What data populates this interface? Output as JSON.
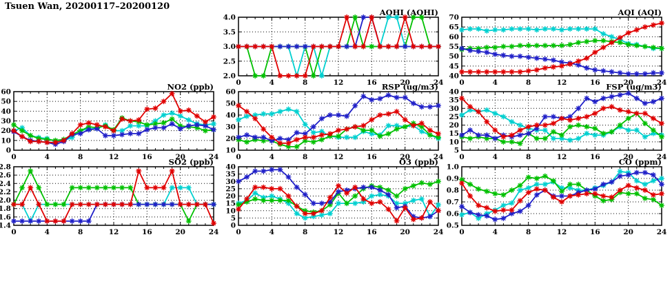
{
  "title": "Tsuen Wan, 20200117–20200120",
  "colors": {
    "red": "#e00000",
    "green": "#00c000",
    "blue": "#2020c8",
    "cyan": "#00d0d0"
  },
  "axis_x": {
    "min": 0,
    "max": 24,
    "ticks": [
      0,
      4,
      8,
      12,
      16,
      20,
      24
    ]
  },
  "marker_style": "asterisk",
  "chart_data": [
    {
      "id": "aqhi",
      "type": "line",
      "title": "AQHI (AQHI)",
      "ylim": [
        2,
        4
      ],
      "yticks": [
        2,
        2.5,
        3,
        3.5,
        4
      ],
      "ydec": 1,
      "series": [
        {
          "color": "cyan",
          "values": [
            3,
            3,
            3,
            3,
            3,
            3,
            3,
            2,
            3,
            3,
            2,
            3,
            3,
            3,
            3,
            3,
            3,
            3,
            4,
            4,
            3,
            3,
            3,
            3,
            3
          ]
        },
        {
          "color": "green",
          "values": [
            3,
            3,
            2,
            2,
            3,
            3,
            3,
            3,
            3,
            2,
            3,
            3,
            3,
            3,
            4,
            3,
            3,
            3,
            3,
            3,
            3,
            4,
            4,
            3,
            3
          ]
        },
        {
          "color": "blue",
          "values": [
            3,
            3,
            3,
            3,
            3,
            3,
            3,
            3,
            3,
            3,
            3,
            3,
            3,
            3,
            3,
            4,
            4,
            3,
            3,
            3,
            3,
            3,
            3,
            3,
            3
          ]
        },
        {
          "color": "red",
          "values": [
            3,
            3,
            3,
            3,
            3,
            2,
            2,
            2,
            2,
            3,
            3,
            3,
            3,
            4,
            3,
            3,
            4,
            3,
            3,
            3,
            4,
            3,
            3,
            3,
            3
          ]
        }
      ]
    },
    {
      "id": "aqi",
      "type": "line",
      "title": "AQI (AQI)",
      "ylim": [
        40,
        70
      ],
      "yticks": [
        40,
        45,
        50,
        55,
        60,
        65,
        70
      ],
      "ydec": 0,
      "series": [
        {
          "color": "cyan",
          "values": [
            63.5,
            64,
            64,
            63,
            63.5,
            63.5,
            64,
            64,
            64,
            63.5,
            64,
            64,
            63.5,
            64,
            64,
            64,
            64,
            61.5,
            60,
            58.5,
            56.5,
            56,
            55,
            54,
            54
          ]
        },
        {
          "color": "green",
          "values": [
            53.5,
            54,
            54,
            54.5,
            54.5,
            55,
            55,
            55.5,
            55.5,
            55.5,
            55.5,
            55.5,
            55.5,
            56,
            57,
            57.5,
            58,
            58,
            57.5,
            57,
            56,
            55.5,
            55,
            54.5,
            54
          ]
        },
        {
          "color": "blue",
          "values": [
            54,
            53,
            52.5,
            52,
            51,
            50.5,
            50,
            50,
            49.5,
            49,
            48.5,
            48,
            47,
            46.5,
            45.5,
            44,
            43,
            42.5,
            42,
            41.5,
            41,
            41,
            41,
            41.5,
            41.5
          ]
        },
        {
          "color": "red",
          "values": [
            42,
            42,
            42,
            42,
            42,
            42,
            42,
            42,
            42.5,
            43,
            44,
            44.5,
            45,
            46,
            47.5,
            49,
            52,
            54.5,
            57,
            59.5,
            62,
            63.5,
            65,
            66,
            67
          ]
        }
      ]
    },
    {
      "id": "no2",
      "type": "line",
      "title": "NO2 (ppb)",
      "ylim": [
        0,
        60
      ],
      "yticks": [
        0,
        10,
        20,
        30,
        40,
        50,
        60
      ],
      "ydec": 0,
      "series": [
        {
          "color": "cyan",
          "values": [
            20,
            23,
            15,
            13,
            12,
            9,
            10,
            13,
            20,
            22,
            22,
            26,
            20,
            20,
            25,
            25,
            25,
            30,
            36,
            38,
            35,
            31,
            27,
            26,
            27
          ]
        },
        {
          "color": "green",
          "values": [
            26,
            20,
            15,
            12,
            11,
            10,
            11,
            16,
            20,
            24,
            23,
            25,
            21,
            33,
            30,
            29,
            26,
            27,
            28,
            32,
            25,
            24,
            23,
            20,
            21
          ]
        },
        {
          "color": "blue",
          "values": [
            19,
            14,
            10,
            9,
            8,
            6,
            9,
            16,
            17,
            21,
            22,
            15,
            15,
            16,
            17,
            17,
            21,
            23,
            23,
            27,
            22,
            25,
            26,
            25,
            21
          ]
        },
        {
          "color": "red",
          "values": [
            20,
            14,
            9,
            9,
            8,
            8,
            10,
            17,
            26,
            28,
            26,
            24,
            20,
            32,
            30,
            31,
            42,
            43,
            50,
            58,
            40,
            41,
            35,
            29,
            34
          ]
        }
      ]
    },
    {
      "id": "rsp",
      "type": "line",
      "title": "RSP (ug/m3)",
      "ylim": [
        10,
        60
      ],
      "yticks": [
        10,
        20,
        30,
        40,
        50,
        60
      ],
      "ydec": 0,
      "series": [
        {
          "color": "cyan",
          "values": [
            36,
            39,
            40,
            41,
            41,
            43,
            45,
            43,
            32,
            25,
            26,
            22,
            21,
            21,
            21,
            26,
            24,
            23,
            31,
            31,
            30,
            31,
            26,
            23,
            20
          ]
        },
        {
          "color": "green",
          "values": [
            19,
            17,
            19,
            18,
            18,
            15,
            13,
            13,
            18,
            17,
            19,
            22,
            22,
            28,
            30,
            27,
            27,
            22,
            24,
            28,
            30,
            33,
            30,
            23,
            21
          ]
        },
        {
          "color": "blue",
          "values": [
            21,
            23,
            21,
            21,
            18,
            20,
            19,
            25,
            24,
            30,
            37,
            40,
            40,
            39,
            48,
            56,
            53,
            54,
            57,
            55,
            55,
            50,
            47,
            47,
            48
          ]
        },
        {
          "color": "red",
          "values": [
            48,
            43,
            37,
            28,
            21,
            16,
            16,
            19,
            21,
            21,
            23,
            24,
            27,
            28,
            30,
            31,
            36,
            40,
            41,
            43,
            36,
            31,
            33,
            27,
            24
          ]
        }
      ]
    },
    {
      "id": "fsp",
      "type": "line",
      "title": "FSP (ug/m3)",
      "ylim": [
        5,
        40
      ],
      "yticks": [
        5,
        10,
        15,
        20,
        25,
        30,
        35,
        40
      ],
      "ydec": 0,
      "series": [
        {
          "color": "cyan",
          "values": [
            26,
            29,
            28,
            29,
            27,
            25,
            22,
            20,
            18,
            17,
            17,
            12,
            12,
            11,
            12,
            15,
            14,
            14,
            16,
            19,
            17,
            17,
            13,
            15,
            14
          ]
        },
        {
          "color": "green",
          "values": [
            13,
            12,
            13,
            12,
            12,
            10,
            10,
            9,
            15,
            12,
            12,
            16,
            14,
            19,
            20,
            19,
            18,
            15,
            16,
            20,
            24,
            27,
            21,
            17,
            13
          ]
        },
        {
          "color": "blue",
          "values": [
            14,
            17,
            14,
            14,
            12,
            14,
            13,
            14,
            15,
            18,
            25,
            25,
            24,
            25,
            30,
            36,
            34,
            36,
            37,
            38,
            39,
            36,
            33,
            34,
            36
          ]
        },
        {
          "color": "red",
          "values": [
            36,
            31,
            28,
            22,
            17,
            13,
            14,
            17,
            19,
            20,
            20,
            21,
            24,
            23,
            24,
            25,
            27,
            30,
            31,
            29,
            28,
            27,
            27,
            24,
            21
          ]
        }
      ]
    },
    {
      "id": "so2",
      "type": "line",
      "title": "SO2 (ppb)",
      "ylim": [
        1.4,
        2.8
      ],
      "yticks": [
        1.4,
        1.6,
        1.8,
        2.0,
        2.2,
        2.4,
        2.6,
        2.8
      ],
      "ydec": 1,
      "series": [
        {
          "color": "cyan",
          "values": [
            1.9,
            1.9,
            1.5,
            1.9,
            1.9,
            1.9,
            1.9,
            1.9,
            1.9,
            1.9,
            1.9,
            1.9,
            1.9,
            1.9,
            1.9,
            1.9,
            1.9,
            1.9,
            1.9,
            2.3,
            2.3,
            2.3,
            1.9,
            1.9,
            1.9
          ]
        },
        {
          "color": "green",
          "values": [
            1.9,
            2.3,
            2.7,
            2.3,
            1.9,
            1.9,
            1.9,
            2.3,
            2.3,
            2.3,
            2.3,
            2.3,
            2.3,
            2.3,
            2.3,
            1.9,
            1.9,
            1.9,
            1.9,
            1.9,
            1.9,
            1.5,
            1.9,
            1.9,
            1.9
          ]
        },
        {
          "color": "blue",
          "values": [
            1.5,
            1.5,
            1.5,
            1.5,
            1.5,
            1.5,
            1.5,
            1.5,
            1.5,
            1.5,
            1.9,
            1.9,
            1.9,
            1.9,
            1.9,
            1.9,
            1.9,
            1.9,
            1.9,
            1.9,
            1.9,
            1.9,
            1.9,
            1.9,
            1.9
          ]
        },
        {
          "color": "red",
          "values": [
            1.9,
            1.9,
            2.3,
            1.9,
            1.5,
            1.5,
            1.5,
            1.9,
            1.9,
            1.9,
            1.9,
            1.9,
            1.9,
            1.9,
            1.9,
            2.7,
            2.3,
            2.3,
            2.3,
            2.7,
            1.9,
            1.9,
            1.9,
            1.9,
            1.45
          ]
        }
      ]
    },
    {
      "id": "o3",
      "type": "line",
      "title": "O3 (ppb)",
      "ylim": [
        0,
        40
      ],
      "yticks": [
        0,
        5,
        10,
        15,
        20,
        25,
        30,
        35,
        40
      ],
      "ydec": 0,
      "series": [
        {
          "color": "cyan",
          "values": [
            15,
            17,
            22,
            19,
            20,
            18,
            15,
            8,
            5,
            6,
            7,
            8,
            15,
            15,
            15,
            16,
            20,
            21,
            20,
            15,
            15,
            17,
            18,
            6,
            14
          ]
        },
        {
          "color": "green",
          "values": [
            14,
            16,
            18,
            17,
            17,
            17,
            17,
            13,
            10,
            9,
            10,
            14,
            22,
            15,
            20,
            25,
            27,
            26,
            24,
            20,
            25,
            27,
            29,
            28,
            30
          ]
        },
        {
          "color": "blue",
          "values": [
            30,
            33,
            37,
            37,
            38,
            38,
            33,
            26,
            21,
            15,
            15,
            16,
            23,
            24,
            25,
            26,
            26,
            24,
            21,
            12,
            13,
            6,
            5,
            6,
            10
          ]
        },
        {
          "color": "red",
          "values": [
            11,
            18,
            26,
            26,
            25,
            25,
            20,
            13,
            8,
            8,
            10,
            19,
            27,
            22,
            26,
            18,
            15,
            16,
            11,
            3,
            12,
            4,
            5,
            16,
            10
          ]
        }
      ]
    },
    {
      "id": "co",
      "type": "line",
      "title": "CO (ppm)",
      "ylim": [
        0.5,
        1.0
      ],
      "yticks": [
        0.5,
        0.6,
        0.7,
        0.8,
        0.9,
        1.0
      ],
      "ydec": 1,
      "series": [
        {
          "color": "cyan",
          "values": [
            0.59,
            0.61,
            0.56,
            0.6,
            0.63,
            0.67,
            0.69,
            0.8,
            0.82,
            0.85,
            0.85,
            0.87,
            0.82,
            0.82,
            0.8,
            0.8,
            0.82,
            0.84,
            0.87,
            0.96,
            0.95,
            0.88,
            0.85,
            0.88,
            0.9
          ]
        },
        {
          "color": "green",
          "values": [
            0.89,
            0.85,
            0.81,
            0.79,
            0.77,
            0.76,
            0.8,
            0.84,
            0.91,
            0.9,
            0.92,
            0.88,
            0.79,
            0.85,
            0.85,
            0.8,
            0.75,
            0.71,
            0.72,
            0.78,
            0.77,
            0.77,
            0.73,
            0.72,
            0.67
          ]
        },
        {
          "color": "blue",
          "values": [
            0.66,
            0.61,
            0.59,
            0.58,
            0.55,
            0.56,
            0.6,
            0.62,
            0.67,
            0.76,
            0.8,
            0.75,
            0.75,
            0.75,
            0.78,
            0.8,
            0.81,
            0.85,
            0.87,
            0.92,
            0.93,
            0.95,
            0.95,
            0.93,
            0.85
          ]
        },
        {
          "color": "red",
          "values": [
            0.86,
            0.75,
            0.67,
            0.65,
            0.62,
            0.63,
            0.63,
            0.71,
            0.78,
            0.81,
            0.8,
            0.74,
            0.7,
            0.75,
            0.76,
            0.77,
            0.77,
            0.75,
            0.74,
            0.8,
            0.84,
            0.82,
            0.8,
            0.76,
            0.77
          ]
        }
      ]
    }
  ]
}
